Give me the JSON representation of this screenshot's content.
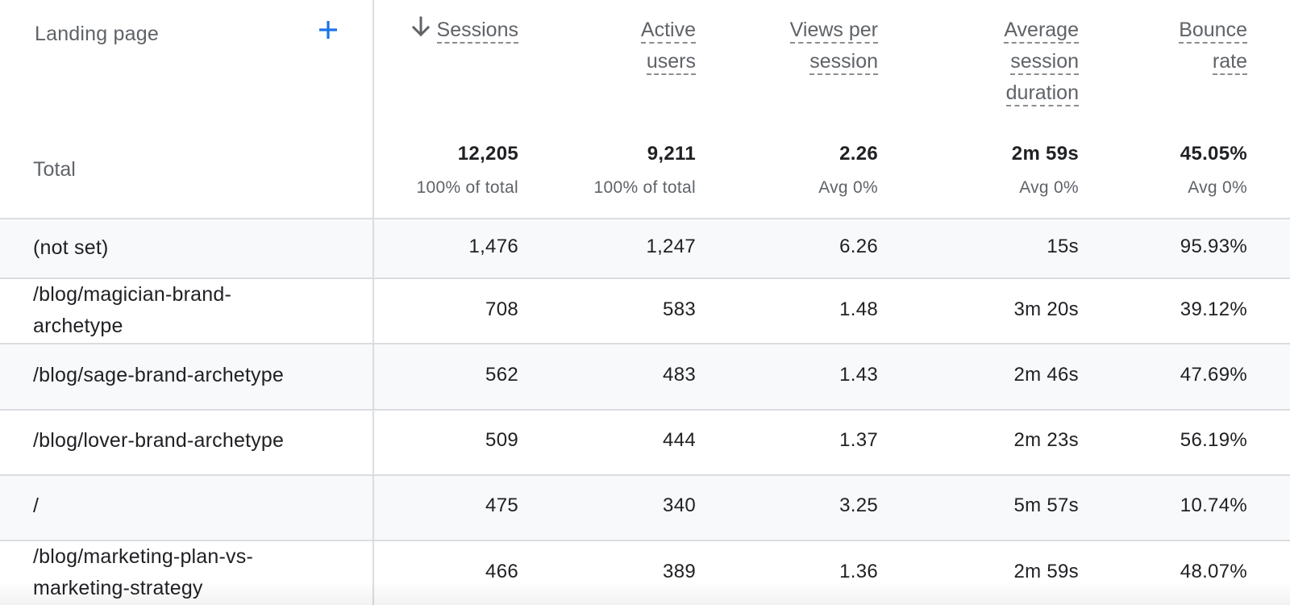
{
  "header": {
    "landing_label": "Landing page",
    "columns": [
      {
        "key": "sessions",
        "lines": [
          "Sessions"
        ],
        "sorted": true
      },
      {
        "key": "active_users",
        "lines": [
          "Active",
          "users"
        ]
      },
      {
        "key": "views_per_session",
        "lines": [
          "Views per",
          "session"
        ]
      },
      {
        "key": "avg_session_duration",
        "lines": [
          "Average",
          "session",
          "duration"
        ]
      },
      {
        "key": "bounce_rate",
        "lines": [
          "Bounce",
          "rate"
        ]
      }
    ]
  },
  "totals": {
    "label": "Total",
    "values": [
      {
        "value": "12,205",
        "sub": "100% of total"
      },
      {
        "value": "9,211",
        "sub": "100% of total"
      },
      {
        "value": "2.26",
        "sub": "Avg 0%"
      },
      {
        "value": "2m 59s",
        "sub": "Avg 0%"
      },
      {
        "value": "45.05%",
        "sub": "Avg 0%"
      }
    ]
  },
  "rows": [
    {
      "page": [
        "(not set)"
      ],
      "values": [
        "1,476",
        "1,247",
        "6.26",
        "15s",
        "95.93%"
      ]
    },
    {
      "page": [
        "/blog/magician-brand-",
        "archetype"
      ],
      "values": [
        "708",
        "583",
        "1.48",
        "3m 20s",
        "39.12%"
      ]
    },
    {
      "page": [
        "/blog/sage-brand-archetype"
      ],
      "values": [
        "562",
        "483",
        "1.43",
        "2m 46s",
        "47.69%"
      ]
    },
    {
      "page": [
        "/blog/lover-brand-archetype"
      ],
      "values": [
        "509",
        "444",
        "1.37",
        "2m 23s",
        "56.19%"
      ]
    },
    {
      "page": [
        "/"
      ],
      "values": [
        "475",
        "340",
        "3.25",
        "5m 57s",
        "10.74%"
      ]
    },
    {
      "page": [
        "/blog/marketing-plan-vs-",
        "marketing-strategy"
      ],
      "values": [
        "466",
        "389",
        "1.36",
        "2m 59s",
        "48.07%"
      ]
    }
  ],
  "colors": {
    "stripe": "#f8f9fa",
    "accent": "#1a73e8",
    "muted": "#5f6368",
    "text": "#202124"
  },
  "icons": {
    "add": "plus-icon",
    "sort": "arrow-down-icon"
  }
}
